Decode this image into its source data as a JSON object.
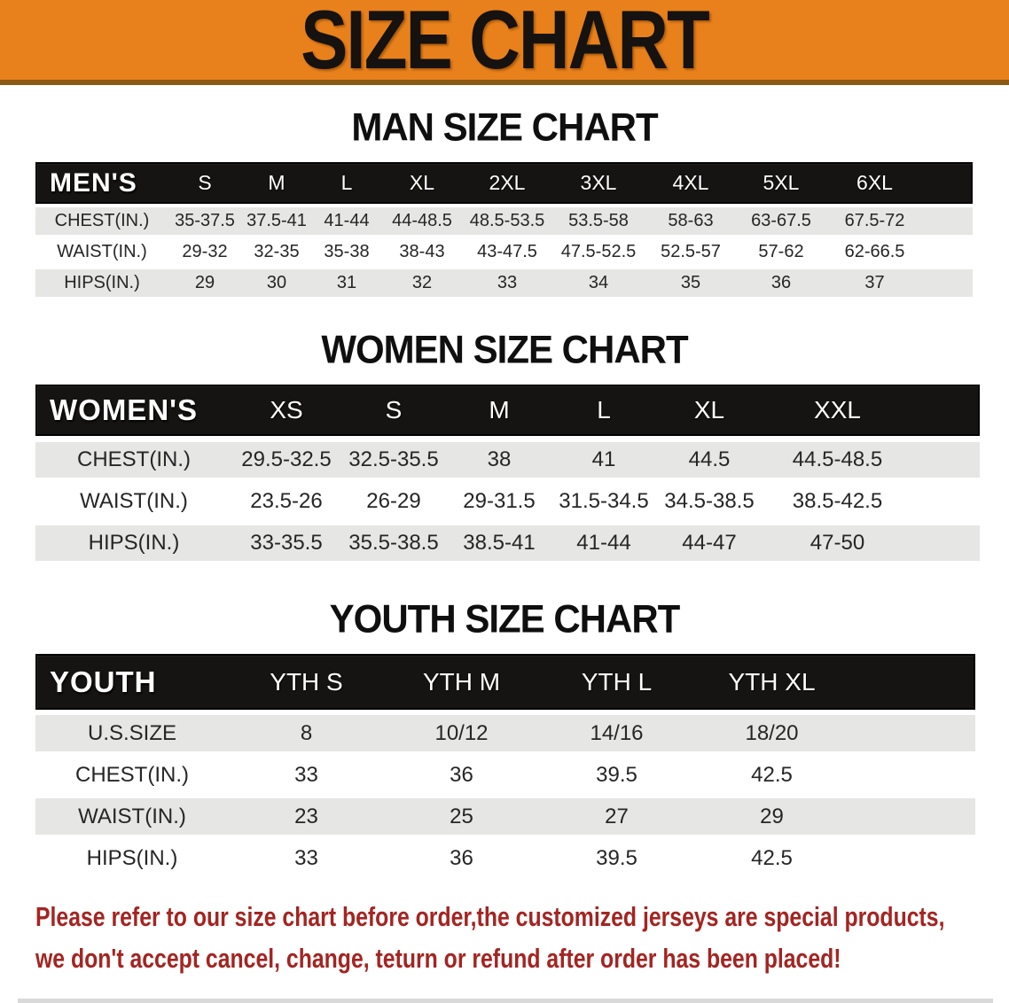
{
  "banner": {
    "title": "SIZE CHART",
    "bg_color": "#e8811b",
    "edge_color": "#8a5a17"
  },
  "sections": [
    {
      "id": "men",
      "title": "MAN SIZE CHART",
      "header_label": "MEN'S",
      "sizes": [
        "S",
        "M",
        "L",
        "XL",
        "2XL",
        "3XL",
        "4XL",
        "5XL",
        "6XL"
      ],
      "rows": [
        {
          "label": "CHEST(IN.)",
          "values": [
            "35-37.5",
            "37.5-41",
            "41-44",
            "44-48.5",
            "48.5-53.5",
            "53.5-58",
            "58-63",
            "63-67.5",
            "67.5-72"
          ]
        },
        {
          "label": "WAIST(IN.)",
          "values": [
            "29-32",
            "32-35",
            "35-38",
            "38-43",
            "43-47.5",
            "47.5-52.5",
            "52.5-57",
            "57-62",
            "62-66.5"
          ]
        },
        {
          "label": "HIPS(IN.)",
          "values": [
            "29",
            "30",
            "31",
            "32",
            "33",
            "34",
            "35",
            "36",
            "37"
          ]
        }
      ]
    },
    {
      "id": "women",
      "title": "WOMEN SIZE CHART",
      "header_label": "WOMEN'S",
      "sizes": [
        "XS",
        "S",
        "M",
        "L",
        "XL",
        "XXL"
      ],
      "rows": [
        {
          "label": "CHEST(IN.)",
          "values": [
            "29.5-32.5",
            "32.5-35.5",
            "38",
            "41",
            "44.5",
            "44.5-48.5"
          ]
        },
        {
          "label": "WAIST(IN.)",
          "values": [
            "23.5-26",
            "26-29",
            "29-31.5",
            "31.5-34.5",
            "34.5-38.5",
            "38.5-42.5"
          ]
        },
        {
          "label": "HIPS(IN.)",
          "values": [
            "33-35.5",
            "35.5-38.5",
            "38.5-41",
            "41-44",
            "44-47",
            "47-50"
          ]
        }
      ]
    },
    {
      "id": "youth",
      "title": "YOUTH SIZE CHART",
      "header_label": "YOUTH",
      "sizes": [
        "YTH S",
        "YTH M",
        "YTH L",
        "YTH XL"
      ],
      "rows": [
        {
          "label": "U.S.SIZE",
          "values": [
            "8",
            "10/12",
            "14/16",
            "18/20"
          ]
        },
        {
          "label": "CHEST(IN.)",
          "values": [
            "33",
            "36",
            "39.5",
            "42.5"
          ]
        },
        {
          "label": "WAIST(IN.)",
          "values": [
            "23",
            "25",
            "27",
            "29"
          ]
        },
        {
          "label": "HIPS(IN.)",
          "values": [
            "33",
            "36",
            "39.5",
            "42.5"
          ]
        }
      ]
    }
  ],
  "disclaimer": {
    "color": "#a32522",
    "lines": [
      "Please refer to our size chart before order,the customized jerseys are special products,",
      "we don't accept cancel, change, teturn or refund after order has been placed!"
    ]
  }
}
